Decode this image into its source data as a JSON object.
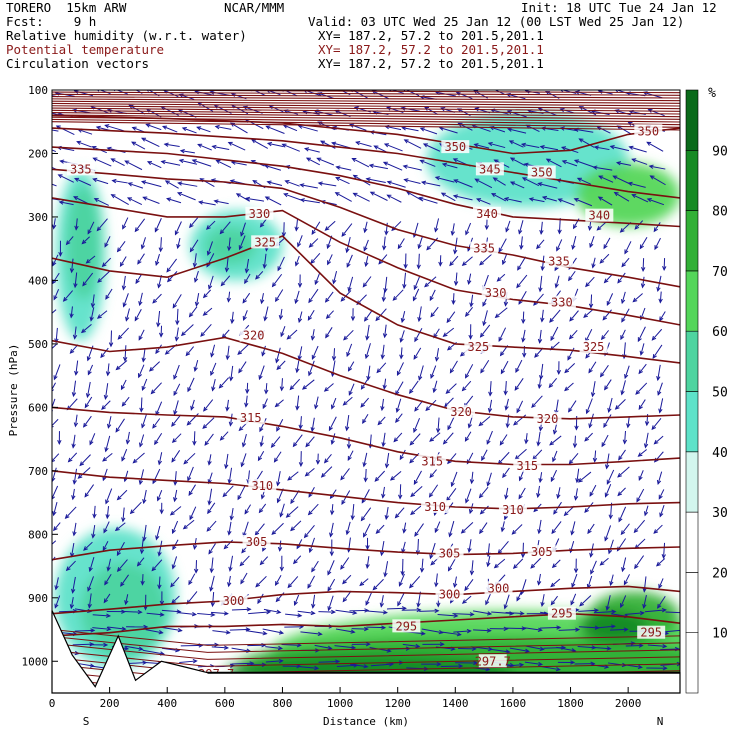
{
  "header": {
    "model": "TORERO  15km ARW",
    "center": "NCAR/MMM",
    "init": "Init: 18 UTC Tue 24 Jan 12",
    "fcst": "Fcst:    9 h",
    "valid": "Valid: 03 UTC Wed 25 Jan 12 (00 LST Wed 25 Jan 12)",
    "fields": [
      {
        "label": "Relative humidity (w.r.t. water)",
        "xy": "XY= 187.2, 57.2 to 201.5,201.1",
        "color": "#000000"
      },
      {
        "label": "Potential temperature",
        "xy": "XY= 187.2, 57.2 to 201.5,201.1",
        "color": "#8b1a1a"
      },
      {
        "label": "Circulation vectors",
        "xy": "XY= 187.2, 57.2 to 201.5,201.1",
        "color": "#000000"
      }
    ]
  },
  "chart_data": {
    "type": "heatmap",
    "title": "",
    "xlabel": "Distance (km)",
    "ylabel": "Pressure (hPa)",
    "xlim": [
      0,
      2180
    ],
    "ylim": [
      1050,
      100
    ],
    "x_ticks": [
      0,
      200,
      400,
      600,
      800,
      1000,
      1200,
      1400,
      1600,
      1800,
      2000
    ],
    "y_ticks": [
      100,
      200,
      300,
      400,
      500,
      600,
      700,
      800,
      900,
      1000
    ],
    "x_end_labels": {
      "left": "S",
      "right": "N"
    },
    "colorbar": {
      "unit": "%",
      "levels": [
        10,
        20,
        30,
        40,
        50,
        60,
        70,
        80,
        90
      ],
      "colors": [
        "#ffffff",
        "#ffffff",
        "#ffffff",
        "#d3f6ee",
        "#5ee2c9",
        "#4ed4a0",
        "#54d65a",
        "#32b036",
        "#178a24",
        "#0a6a1a"
      ]
    },
    "theta_contours": [
      {
        "value": 295,
        "label_points": [
          [
            1230,
            945
          ],
          [
            1770,
            925
          ],
          [
            2080,
            955
          ]
        ],
        "line": [
          [
            0,
            960
          ],
          [
            200,
            955
          ],
          [
            400,
            945
          ],
          [
            600,
            945
          ],
          [
            800,
            942
          ],
          [
            1000,
            945
          ],
          [
            1200,
            940
          ],
          [
            1400,
            935
          ],
          [
            1600,
            930
          ],
          [
            1800,
            925
          ],
          [
            2000,
            930
          ],
          [
            2180,
            940
          ]
        ]
      },
      {
        "value": 297.7,
        "label_points": [
          [
            570,
            1020
          ],
          [
            1530,
            1000
          ]
        ],
        "line": [
          [
            500,
            1020
          ],
          [
            600,
            1022
          ]
        ]
      },
      {
        "value": 300,
        "label_points": [
          [
            630,
            905
          ],
          [
            1380,
            895
          ],
          [
            1550,
            885
          ]
        ],
        "line": [
          [
            0,
            925
          ],
          [
            200,
            918
          ],
          [
            400,
            910
          ],
          [
            600,
            905
          ],
          [
            800,
            895
          ],
          [
            1000,
            890
          ],
          [
            1200,
            892
          ],
          [
            1400,
            895
          ],
          [
            1600,
            890
          ],
          [
            1800,
            885
          ],
          [
            2000,
            882
          ],
          [
            2180,
            890
          ]
        ]
      },
      {
        "value": 305,
        "label_points": [
          [
            710,
            812
          ],
          [
            1380,
            830
          ],
          [
            1700,
            828
          ]
        ],
        "line": [
          [
            0,
            840
          ],
          [
            200,
            825
          ],
          [
            400,
            818
          ],
          [
            600,
            812
          ],
          [
            800,
            815
          ],
          [
            1000,
            822
          ],
          [
            1200,
            828
          ],
          [
            1400,
            832
          ],
          [
            1600,
            830
          ],
          [
            1800,
            825
          ],
          [
            2000,
            822
          ],
          [
            2180,
            820
          ]
        ]
      },
      {
        "value": 310,
        "label_points": [
          [
            730,
            724
          ],
          [
            1330,
            757
          ],
          [
            1600,
            762
          ]
        ],
        "line": [
          [
            0,
            700
          ],
          [
            200,
            710
          ],
          [
            400,
            715
          ],
          [
            600,
            720
          ],
          [
            800,
            730
          ],
          [
            1000,
            740
          ],
          [
            1200,
            750
          ],
          [
            1400,
            757
          ],
          [
            1600,
            760
          ],
          [
            1800,
            757
          ],
          [
            2000,
            752
          ],
          [
            2180,
            750
          ]
        ]
      },
      {
        "value": 315,
        "label_points": [
          [
            690,
            617
          ],
          [
            1320,
            685
          ],
          [
            1650,
            692
          ]
        ],
        "line": [
          [
            0,
            600
          ],
          [
            200,
            608
          ],
          [
            400,
            612
          ],
          [
            600,
            615
          ],
          [
            800,
            630
          ],
          [
            1000,
            648
          ],
          [
            1200,
            670
          ],
          [
            1400,
            685
          ],
          [
            1600,
            690
          ],
          [
            1800,
            690
          ],
          [
            2000,
            685
          ],
          [
            2180,
            680
          ]
        ]
      },
      {
        "value": 320,
        "label_points": [
          [
            700,
            487
          ],
          [
            1420,
            607
          ],
          [
            1720,
            618
          ]
        ],
        "line": [
          [
            0,
            495
          ],
          [
            200,
            512
          ],
          [
            400,
            505
          ],
          [
            600,
            490
          ],
          [
            800,
            515
          ],
          [
            1000,
            550
          ],
          [
            1200,
            580
          ],
          [
            1400,
            605
          ],
          [
            1600,
            615
          ],
          [
            1800,
            618
          ],
          [
            2000,
            615
          ],
          [
            2180,
            612
          ]
        ]
      },
      {
        "value": 325,
        "label_points": [
          [
            740,
            340
          ],
          [
            1480,
            505
          ],
          [
            1880,
            505
          ]
        ],
        "line": [
          [
            0,
            365
          ],
          [
            200,
            385
          ],
          [
            400,
            395
          ],
          [
            600,
            365
          ],
          [
            800,
            330
          ],
          [
            1000,
            420
          ],
          [
            1200,
            470
          ],
          [
            1400,
            500
          ],
          [
            1600,
            505
          ],
          [
            1800,
            510
          ],
          [
            2000,
            520
          ],
          [
            2180,
            530
          ]
        ]
      },
      {
        "value": 330,
        "label_points": [
          [
            720,
            295
          ],
          [
            1540,
            420
          ],
          [
            1770,
            435
          ]
        ],
        "line": [
          [
            0,
            270
          ],
          [
            200,
            285
          ],
          [
            400,
            300
          ],
          [
            600,
            300
          ],
          [
            800,
            290
          ],
          [
            1000,
            340
          ],
          [
            1200,
            380
          ],
          [
            1400,
            415
          ],
          [
            1600,
            430
          ],
          [
            1800,
            440
          ],
          [
            2000,
            455
          ],
          [
            2180,
            470
          ]
        ]
      },
      {
        "value": 335,
        "label_points": [
          [
            100,
            225
          ],
          [
            1500,
            350
          ],
          [
            1760,
            370
          ]
        ],
        "line": [
          [
            0,
            225
          ],
          [
            200,
            232
          ],
          [
            400,
            240
          ],
          [
            600,
            245
          ],
          [
            800,
            255
          ],
          [
            1000,
            285
          ],
          [
            1200,
            320
          ],
          [
            1400,
            345
          ],
          [
            1600,
            360
          ],
          [
            1800,
            380
          ],
          [
            2000,
            395
          ],
          [
            2180,
            410
          ]
        ]
      },
      {
        "value": 340,
        "label_points": [
          [
            1510,
            295
          ],
          [
            1900,
            298
          ]
        ],
        "line": [
          [
            0,
            190
          ],
          [
            400,
            200
          ],
          [
            800,
            220
          ],
          [
            1000,
            235
          ],
          [
            1200,
            255
          ],
          [
            1400,
            280
          ],
          [
            1600,
            300
          ],
          [
            1800,
            305
          ],
          [
            2000,
            310
          ],
          [
            2180,
            315
          ]
        ]
      },
      {
        "value": 345,
        "label_points": [
          [
            1520,
            225
          ]
        ],
        "line": [
          [
            0,
            160
          ],
          [
            400,
            168
          ],
          [
            800,
            180
          ],
          [
            1200,
            200
          ],
          [
            1400,
            215
          ],
          [
            1600,
            230
          ],
          [
            1800,
            245
          ],
          [
            2000,
            260
          ],
          [
            2180,
            270
          ]
        ]
      },
      {
        "value": 350,
        "label_points": [
          [
            1400,
            190
          ],
          [
            1700,
            230
          ],
          [
            2070,
            165
          ]
        ],
        "line": [
          [
            0,
            140
          ],
          [
            400,
            145
          ],
          [
            800,
            152
          ],
          [
            1200,
            170
          ],
          [
            1400,
            185
          ],
          [
            1600,
            200
          ],
          [
            1800,
            195
          ],
          [
            2000,
            170
          ],
          [
            2180,
            160
          ]
        ]
      }
    ],
    "rh_regions": [
      {
        "level": 40,
        "center": [
          100,
          360
        ],
        "size": [
          170,
          270
        ]
      },
      {
        "level": 50,
        "center": [
          110,
          340
        ],
        "size": [
          120,
          180
        ]
      },
      {
        "level": 40,
        "center": [
          640,
          345
        ],
        "size": [
          320,
          110
        ]
      },
      {
        "level": 50,
        "center": [
          620,
          345
        ],
        "size": [
          180,
          60
        ]
      },
      {
        "level": 40,
        "center": [
          1650,
          210
        ],
        "size": [
          700,
          150
        ]
      },
      {
        "level": 60,
        "center": [
          2000,
          265
        ],
        "size": [
          360,
          100
        ]
      },
      {
        "level": 40,
        "center": [
          220,
          900
        ],
        "size": [
          420,
          220
        ]
      },
      {
        "level": 50,
        "center": [
          250,
          920
        ],
        "size": [
          300,
          150
        ]
      },
      {
        "level": 60,
        "center": [
          1600,
          990
        ],
        "size": [
          1700,
          140
        ]
      },
      {
        "level": 70,
        "center": [
          1500,
          1005
        ],
        "size": [
          1700,
          90
        ]
      },
      {
        "level": 70,
        "center": [
          2020,
          930
        ],
        "size": [
          320,
          80
        ]
      },
      {
        "level": 80,
        "center": [
          1100,
          1015
        ],
        "size": [
          1000,
          50
        ]
      },
      {
        "level": 80,
        "center": [
          1950,
          945
        ],
        "size": [
          240,
          50
        ]
      }
    ]
  }
}
